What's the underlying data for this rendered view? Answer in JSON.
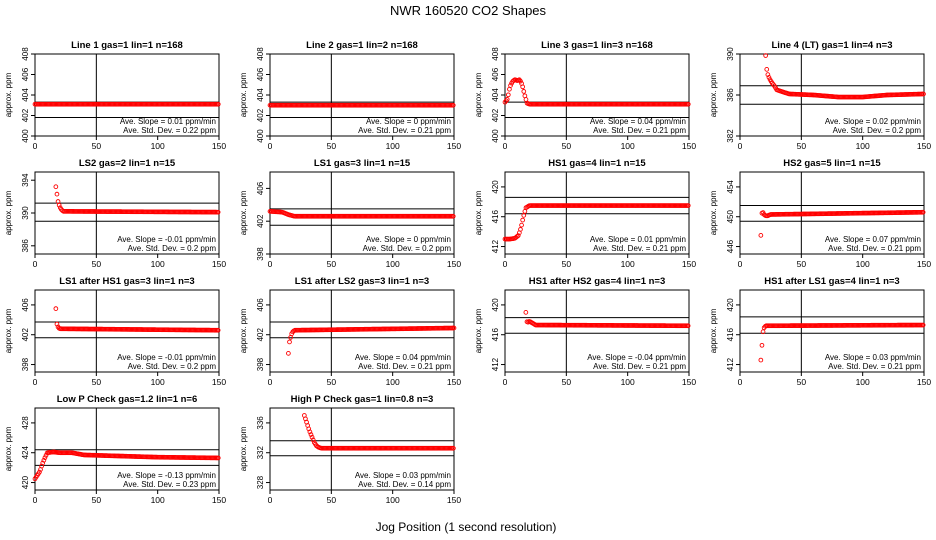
{
  "figure": {
    "title": "NWR  160520  CO2 Shapes",
    "xlabel": "Jog Position (1 second resolution)"
  },
  "colors": {
    "points": "#ff0000",
    "axes": "#000000",
    "background": "#ffffff"
  },
  "chart_data": [
    {
      "type": "scatter",
      "title": "Line 1 gas=1 lin=1 n=168",
      "ylabel": "approx. ppm",
      "xlim": [
        0,
        150
      ],
      "ylim": [
        400,
        408
      ],
      "xticks": [
        0,
        50,
        100,
        150
      ],
      "yticks": [
        400,
        402,
        404,
        406,
        408
      ],
      "hlines": [
        403.3,
        401.8
      ],
      "vline": 50,
      "annotation": [
        "Ave. Slope =  0.01  ppm/min",
        "Ave. Std. Dev. =  0.22  ppm"
      ],
      "x": [
        0,
        150
      ],
      "y": [
        403.1,
        403.1
      ]
    },
    {
      "type": "scatter",
      "title": "Line 2 gas=1 lin=2 n=168",
      "ylabel": "approx. ppm",
      "xlim": [
        0,
        150
      ],
      "ylim": [
        400,
        408
      ],
      "xticks": [
        0,
        50,
        100,
        150
      ],
      "yticks": [
        400,
        402,
        404,
        406,
        408
      ],
      "hlines": [
        403.3,
        401.8
      ],
      "vline": 50,
      "annotation": [
        "Ave. Slope =  0  ppm/min",
        "Ave. Std. Dev. =  0.21  ppm"
      ],
      "x": [
        0,
        150
      ],
      "y": [
        403.0,
        403.0
      ]
    },
    {
      "type": "scatter",
      "title": "Line 3 gas=1 lin=3 n=168",
      "ylabel": "approx. ppm",
      "xlim": [
        0,
        150
      ],
      "ylim": [
        400,
        408
      ],
      "xticks": [
        0,
        50,
        100,
        150
      ],
      "yticks": [
        400,
        402,
        404,
        406,
        408
      ],
      "hlines": [
        403.3,
        401.8
      ],
      "vline": 50,
      "annotation": [
        "Ave. Slope =  0.04  ppm/min",
        "Ave. Std. Dev. =  0.21  ppm"
      ],
      "x": [
        0,
        2,
        4,
        6,
        8,
        10,
        12,
        14,
        16,
        18,
        20,
        150
      ],
      "y": [
        403.3,
        403.6,
        404.8,
        405.3,
        405.5,
        405.4,
        405.5,
        405.0,
        404.0,
        403.2,
        403.1,
        403.1
      ]
    },
    {
      "type": "scatter",
      "title": "Line 4 (LT) gas=1 lin=4 n=3",
      "ylabel": "approx. ppm",
      "xlim": [
        0,
        150
      ],
      "ylim": [
        382,
        390
      ],
      "xticks": [
        0,
        50,
        100,
        150
      ],
      "yticks": [
        382,
        386,
        390
      ],
      "hlines": [
        386.9,
        385.1
      ],
      "vline": 50,
      "annotation": [
        "Ave. Slope =  0.02  ppm/min",
        "Ave. Std. Dev. =  0.2  ppm"
      ],
      "x": [
        20,
        22,
        24,
        26,
        28,
        30,
        35,
        40,
        60,
        80,
        100,
        120,
        150
      ],
      "y": [
        391.2,
        388.2,
        387.6,
        387.2,
        386.9,
        386.5,
        386.3,
        386.1,
        386.0,
        385.8,
        385.8,
        386.0,
        386.1
      ]
    },
    {
      "type": "scatter",
      "title": "LS2 gas=2 lin=1 n=15",
      "ylabel": "approx. ppm",
      "xlim": [
        0,
        150
      ],
      "ylim": [
        385,
        395
      ],
      "xticks": [
        0,
        50,
        100,
        150
      ],
      "yticks": [
        386,
        390,
        394
      ],
      "hlines": [
        391.2,
        389.0
      ],
      "vline": 50,
      "annotation": [
        "Ave. Slope =  -0.01  ppm/min",
        "Ave. Std. Dev. =  0.2  ppm"
      ],
      "x": [
        17,
        19,
        21,
        23,
        150
      ],
      "y": [
        393.2,
        391.2,
        390.5,
        390.2,
        390.1
      ]
    },
    {
      "type": "scatter",
      "title": "LS1 gas=3 lin=1 n=15",
      "ylabel": "approx. ppm",
      "xlim": [
        0,
        150
      ],
      "ylim": [
        398,
        408
      ],
      "xticks": [
        0,
        50,
        100,
        150
      ],
      "yticks": [
        398,
        402,
        406
      ],
      "hlines": [
        403.5,
        401.5
      ],
      "vline": 50,
      "annotation": [
        "Ave. Slope =  0  ppm/min",
        "Ave. Std. Dev. =  0.2  ppm"
      ],
      "x": [
        0,
        10,
        15,
        20,
        150
      ],
      "y": [
        403.2,
        403.1,
        402.8,
        402.6,
        402.6
      ]
    },
    {
      "type": "scatter",
      "title": "HS1 gas=4 lin=1 n=15",
      "ylabel": "approx. ppm",
      "xlim": [
        0,
        150
      ],
      "ylim": [
        411,
        422
      ],
      "xticks": [
        0,
        50,
        100,
        150
      ],
      "yticks": [
        412,
        416,
        420
      ],
      "hlines": [
        418.6,
        416.4
      ],
      "vline": 50,
      "annotation": [
        "Ave. Slope =  0.01  ppm/min",
        "Ave. Std. Dev. =  0.21  ppm"
      ],
      "x": [
        0,
        4,
        8,
        11,
        13,
        15,
        17,
        20,
        150
      ],
      "y": [
        413.0,
        413.0,
        413.1,
        413.5,
        414.5,
        416.0,
        417.2,
        417.5,
        417.5
      ]
    },
    {
      "type": "scatter",
      "title": "HS2 gas=5 lin=1 n=15",
      "ylabel": "approx. ppm",
      "xlim": [
        0,
        150
      ],
      "ylim": [
        445,
        456
      ],
      "xticks": [
        0,
        50,
        100,
        150
      ],
      "yticks": [
        446,
        450,
        454
      ],
      "hlines": [
        451.5,
        449.4
      ],
      "vline": 50,
      "annotation": [
        "Ave. Slope =  0.07  ppm/min",
        "Ave. Std. Dev. =  0.21  ppm"
      ],
      "x": [
        17,
        18,
        20,
        22,
        25,
        150
      ],
      "y": [
        447.5,
        450.8,
        450.2,
        450.1,
        450.3,
        450.6
      ]
    },
    {
      "type": "scatter",
      "title": "LS1 after HS1 gas=3 lin=1 n=3",
      "ylabel": "approx. ppm",
      "xlim": [
        0,
        150
      ],
      "ylim": [
        397,
        408
      ],
      "xticks": [
        0,
        50,
        100,
        150
      ],
      "yticks": [
        398,
        402,
        406
      ],
      "hlines": [
        403.7,
        401.6
      ],
      "vline": 50,
      "annotation": [
        "Ave. Slope =  -0.01  ppm/min",
        "Ave. Std. Dev. =  0.2  ppm"
      ],
      "x": [
        17,
        18,
        20,
        150
      ],
      "y": [
        405.5,
        403.2,
        402.8,
        402.6
      ]
    },
    {
      "type": "scatter",
      "title": "LS1 after LS2 gas=3 lin=1 n=3",
      "ylabel": "approx. ppm",
      "xlim": [
        0,
        150
      ],
      "ylim": [
        397,
        408
      ],
      "xticks": [
        0,
        50,
        100,
        150
      ],
      "yticks": [
        398,
        402,
        406
      ],
      "hlines": [
        403.7,
        401.6
      ],
      "vline": 50,
      "annotation": [
        "Ave. Slope =  0.04  ppm/min",
        "Ave. Std. Dev. =  0.21  ppm"
      ],
      "x": [
        15,
        16,
        18,
        20,
        150
      ],
      "y": [
        399.5,
        401.2,
        402.3,
        402.6,
        402.9
      ]
    },
    {
      "type": "scatter",
      "title": "HS1 after HS2 gas=4 lin=1 n=3",
      "ylabel": "approx. ppm",
      "xlim": [
        0,
        150
      ],
      "ylim": [
        411,
        422
      ],
      "xticks": [
        0,
        50,
        100,
        150
      ],
      "yticks": [
        412,
        416,
        420
      ],
      "hlines": [
        418.3,
        416.2
      ],
      "vline": 50,
      "annotation": [
        "Ave. Slope =  -0.04  ppm/min",
        "Ave. Std. Dev. =  0.21  ppm"
      ],
      "x": [
        17,
        18,
        20,
        25,
        150
      ],
      "y": [
        419.0,
        417.6,
        417.8,
        417.3,
        417.2
      ]
    },
    {
      "type": "scatter",
      "title": "HS1 after LS1 gas=4 lin=1 n=3",
      "ylabel": "approx. ppm",
      "xlim": [
        0,
        150
      ],
      "ylim": [
        411,
        422
      ],
      "xticks": [
        0,
        50,
        100,
        150
      ],
      "yticks": [
        412,
        416,
        420
      ],
      "hlines": [
        418.4,
        416.2
      ],
      "vline": 50,
      "annotation": [
        "Ave. Slope =  0.03  ppm/min",
        "Ave. Std. Dev. =  0.21  ppm"
      ],
      "x": [
        17,
        18,
        19,
        21,
        150
      ],
      "y": [
        412.6,
        414.8,
        416.8,
        417.2,
        417.3
      ]
    },
    {
      "type": "scatter",
      "title": "Low P Check gas=1.2 lin=1 n=6",
      "ylabel": "approx. ppm",
      "xlim": [
        0,
        150
      ],
      "ylim": [
        419,
        430
      ],
      "xticks": [
        0,
        50,
        100,
        150
      ],
      "yticks": [
        420,
        424,
        428
      ],
      "hlines": [
        424.4,
        422.3
      ],
      "vline": 50,
      "annotation": [
        "Ave. Slope =  -0.13  ppm/min",
        "Ave. Std. Dev. =  0.23  ppm"
      ],
      "x": [
        0,
        2,
        4,
        6,
        8,
        10,
        15,
        20,
        30,
        40,
        60,
        100,
        150
      ],
      "y": [
        420.5,
        421.0,
        421.5,
        422.5,
        423.3,
        424.0,
        424.1,
        424.0,
        424.0,
        423.7,
        423.6,
        423.4,
        423.3
      ]
    },
    {
      "type": "scatter",
      "title": "High P Check gas=1 lin=0.8 n=3",
      "ylabel": "approx. ppm",
      "xlim": [
        0,
        150
      ],
      "ylim": [
        327,
        338
      ],
      "xticks": [
        0,
        50,
        100,
        150
      ],
      "yticks": [
        328,
        332,
        336
      ],
      "hlines": [
        333.6,
        331.6
      ],
      "vline": 50,
      "annotation": [
        "Ave. Slope =  0.03  ppm/min",
        "Ave. Std. Dev. =  0.14  ppm"
      ],
      "x": [
        28,
        30,
        32,
        34,
        36,
        38,
        40,
        42,
        45,
        150
      ],
      "y": [
        337.0,
        336.0,
        335.0,
        334.2,
        333.4,
        332.9,
        332.7,
        332.6,
        332.6,
        332.6
      ]
    }
  ]
}
